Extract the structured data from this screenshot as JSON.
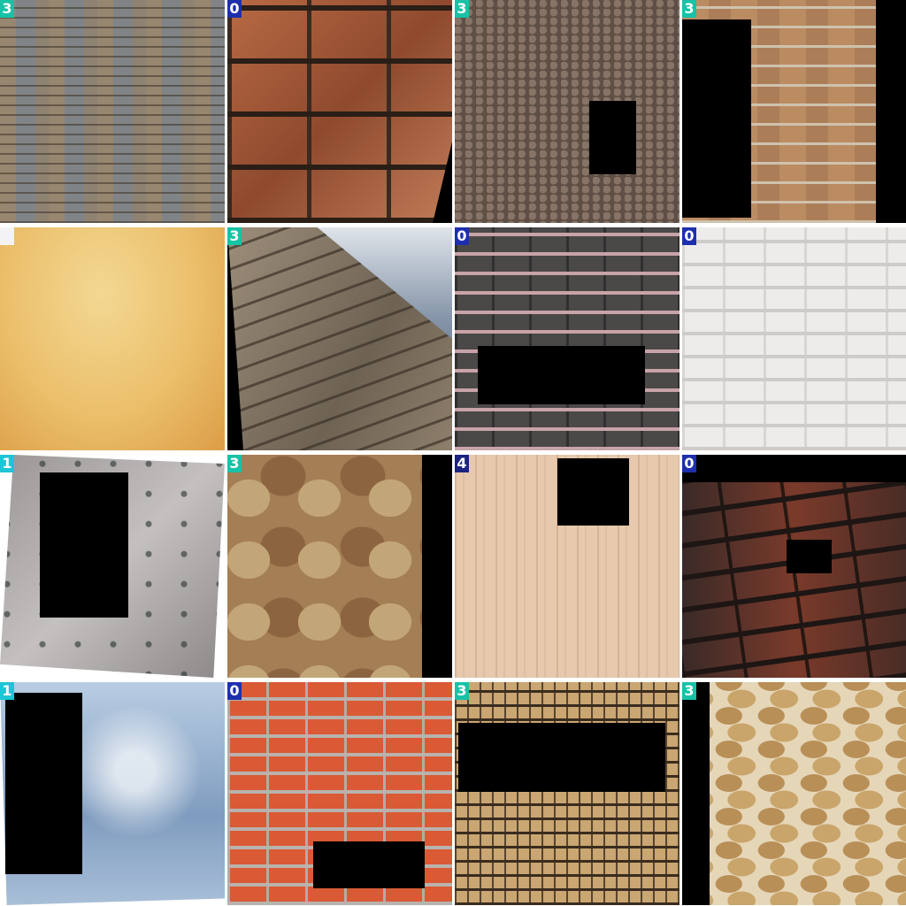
{
  "colors": {
    "badge_teal": "#18c2a6",
    "badge_navy": "#1a237e",
    "badge_blue": "#1e2fae",
    "badge_cyan": "#1ec5d6",
    "occluder": "#000000"
  },
  "tiles": [
    {
      "label": "3",
      "texture": "layered slate stone wall"
    },
    {
      "label": "0",
      "texture": "large red clay bricks"
    },
    {
      "label": "3",
      "texture": "cobblestone wall with arch"
    },
    {
      "label": "3",
      "texture": "sandstone block wall"
    },
    {
      "label": "",
      "texture": "warm yellow gradient"
    },
    {
      "label": "3",
      "texture": "dry stone wall with sky"
    },
    {
      "label": "0",
      "texture": "grey bricks with pink mortar"
    },
    {
      "label": "0",
      "texture": "white painted bricks"
    },
    {
      "label": "1",
      "texture": "weathered grey concrete"
    },
    {
      "label": "3",
      "texture": "rough stone blocks"
    },
    {
      "label": "4",
      "texture": "light wood grain"
    },
    {
      "label": "0",
      "texture": "dark burnt bricks"
    },
    {
      "label": "1",
      "texture": "blue cracked paint"
    },
    {
      "label": "0",
      "texture": "orange red brick wall"
    },
    {
      "label": "3",
      "texture": "stacked stone bricks"
    },
    {
      "label": "3",
      "texture": "flagstone rubble wall"
    }
  ]
}
